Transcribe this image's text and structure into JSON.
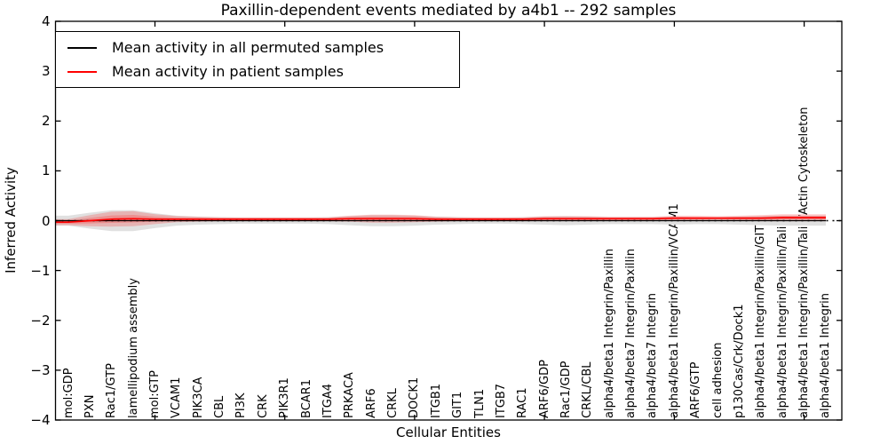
{
  "chart_data": {
    "type": "line",
    "title": "Paxillin-dependent events mediated by a4b1 -- 292 samples",
    "xlabel": "Cellular Entities",
    "ylabel": "Inferred Activity",
    "ylim": [
      -4,
      4
    ],
    "yticks": [
      4,
      3,
      2,
      1,
      0,
      -1,
      -2,
      -3,
      -4
    ],
    "xtick_indices": [
      4,
      10,
      16,
      22,
      28,
      34
    ],
    "grid": false,
    "legend_position": "upper-left",
    "zero_reference_line": {
      "value": 0,
      "style": "dotted",
      "color": "#000000"
    },
    "xticklabel_rotation": 90,
    "categories": [
      "mol:GDP",
      "PXN",
      "Rac1/GTP",
      "lamellipodium assembly",
      "mol:GTP",
      "VCAM1",
      "PIK3CA",
      "CBL",
      "PI3K",
      "CRK",
      "PIK3R1",
      "BCAR1",
      "ITGA4",
      "PRKACA",
      "ARF6",
      "CRKL",
      "DOCK1",
      "ITGB1",
      "GIT1",
      "TLN1",
      "ITGB7",
      "RAC1",
      "ARF6/GDP",
      "Rac1/GDP",
      "CRKL/CBL",
      "alpha4/beta1 Integrin/Paxillin",
      "alpha4/beta7 Integrin/Paxillin",
      "alpha4/beta7 Integrin",
      "alpha4/beta1 Integrin/Paxillin/VCAM1",
      "ARF6/GTP",
      "cell adhesion",
      "p130Cas/Crk/Dock1",
      "alpha4/beta1 Integrin/Paxillin/GIT1",
      "alpha4/beta1 Integrin/Paxillin/Talin",
      "alpha4/beta1 Integrin/Paxillin/Talin/Actin Cytoskeleton",
      "alpha4/beta1 Integrin"
    ],
    "series": [
      {
        "name": "Mean activity in all permuted samples",
        "color": "#000000",
        "band_color": "#e0e0e0",
        "values": [
          0,
          0,
          0,
          0,
          0,
          0,
          0,
          0,
          0,
          0,
          0,
          0,
          0,
          0,
          0,
          0,
          0,
          0,
          0,
          0,
          0,
          0,
          0,
          0,
          0,
          0,
          0,
          0,
          0,
          0,
          0,
          0,
          0,
          0,
          0,
          0
        ],
        "band_halfwidth": [
          0.1,
          0.16,
          0.21,
          0.21,
          0.15,
          0.1,
          0.08,
          0.07,
          0.06,
          0.06,
          0.06,
          0.06,
          0.07,
          0.09,
          0.11,
          0.11,
          0.1,
          0.08,
          0.07,
          0.06,
          0.06,
          0.07,
          0.08,
          0.09,
          0.08,
          0.07,
          0.07,
          0.07,
          0.08,
          0.07,
          0.07,
          0.08,
          0.09,
          0.1,
          0.1,
          0.1
        ]
      },
      {
        "name": "Mean activity in patient samples",
        "color": "#ff0000",
        "band_color": "rgba(255,0,0,0.20)",
        "values": [
          -0.03,
          0,
          0.03,
          0.04,
          0.03,
          0.03,
          0.03,
          0.03,
          0.03,
          0.03,
          0.03,
          0.03,
          0.03,
          0.04,
          0.04,
          0.04,
          0.04,
          0.03,
          0.03,
          0.03,
          0.03,
          0.03,
          0.04,
          0.04,
          0.04,
          0.04,
          0.04,
          0.04,
          0.05,
          0.05,
          0.05,
          0.05,
          0.05,
          0.06,
          0.06,
          0.06
        ],
        "band_halfwidth": [
          0.06,
          0.11,
          0.15,
          0.15,
          0.1,
          0.06,
          0.05,
          0.04,
          0.04,
          0.04,
          0.04,
          0.04,
          0.04,
          0.06,
          0.08,
          0.08,
          0.07,
          0.05,
          0.04,
          0.04,
          0.04,
          0.04,
          0.05,
          0.05,
          0.05,
          0.04,
          0.04,
          0.04,
          0.05,
          0.05,
          0.04,
          0.05,
          0.06,
          0.07,
          0.07,
          0.07
        ]
      }
    ]
  }
}
